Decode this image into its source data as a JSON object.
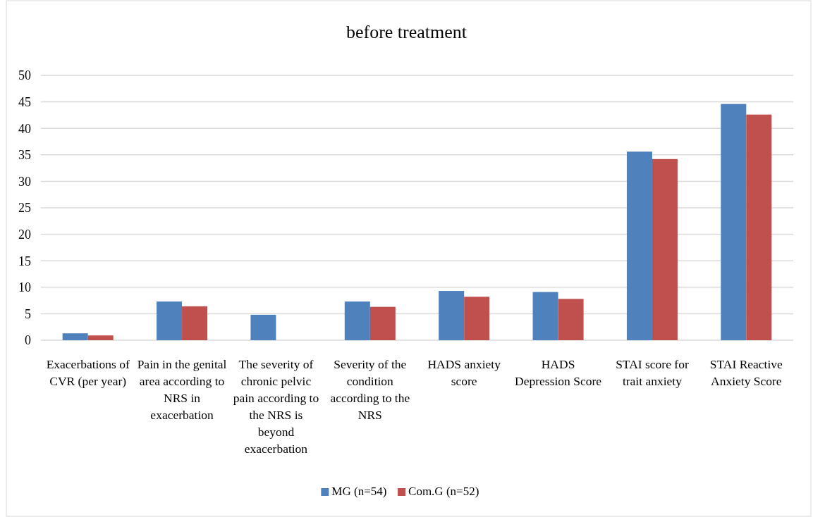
{
  "chart_data": {
    "type": "bar",
    "title": "before treatment",
    "categories": [
      "Exacerbations of CVR (per year)",
      "Pain in the genital area according to NRS in exacerbation",
      "The severity of chronic pelvic pain according to the NRS is beyond exacerbation",
      "Severity of the condition according to the NRS",
      "HADS anxiety score",
      "HADS Depression Score",
      "STAI score for trait anxiety",
      "STAI Reactive Anxiety Score"
    ],
    "series": [
      {
        "name": "MG (n=54)",
        "color": "#4f81bd",
        "values": [
          1.3,
          7.3,
          4.8,
          7.3,
          9.3,
          9.1,
          35.6,
          44.6
        ]
      },
      {
        "name": "Com.G (n=52)",
        "color": "#c0504d",
        "values": [
          0.9,
          6.4,
          null,
          6.3,
          8.2,
          7.8,
          34.2,
          42.6
        ]
      }
    ],
    "ylim": [
      0,
      50
    ],
    "yticks": [
      0,
      5,
      10,
      15,
      20,
      25,
      30,
      35,
      40,
      45,
      50
    ],
    "grid": "y",
    "legend": "bottom"
  }
}
